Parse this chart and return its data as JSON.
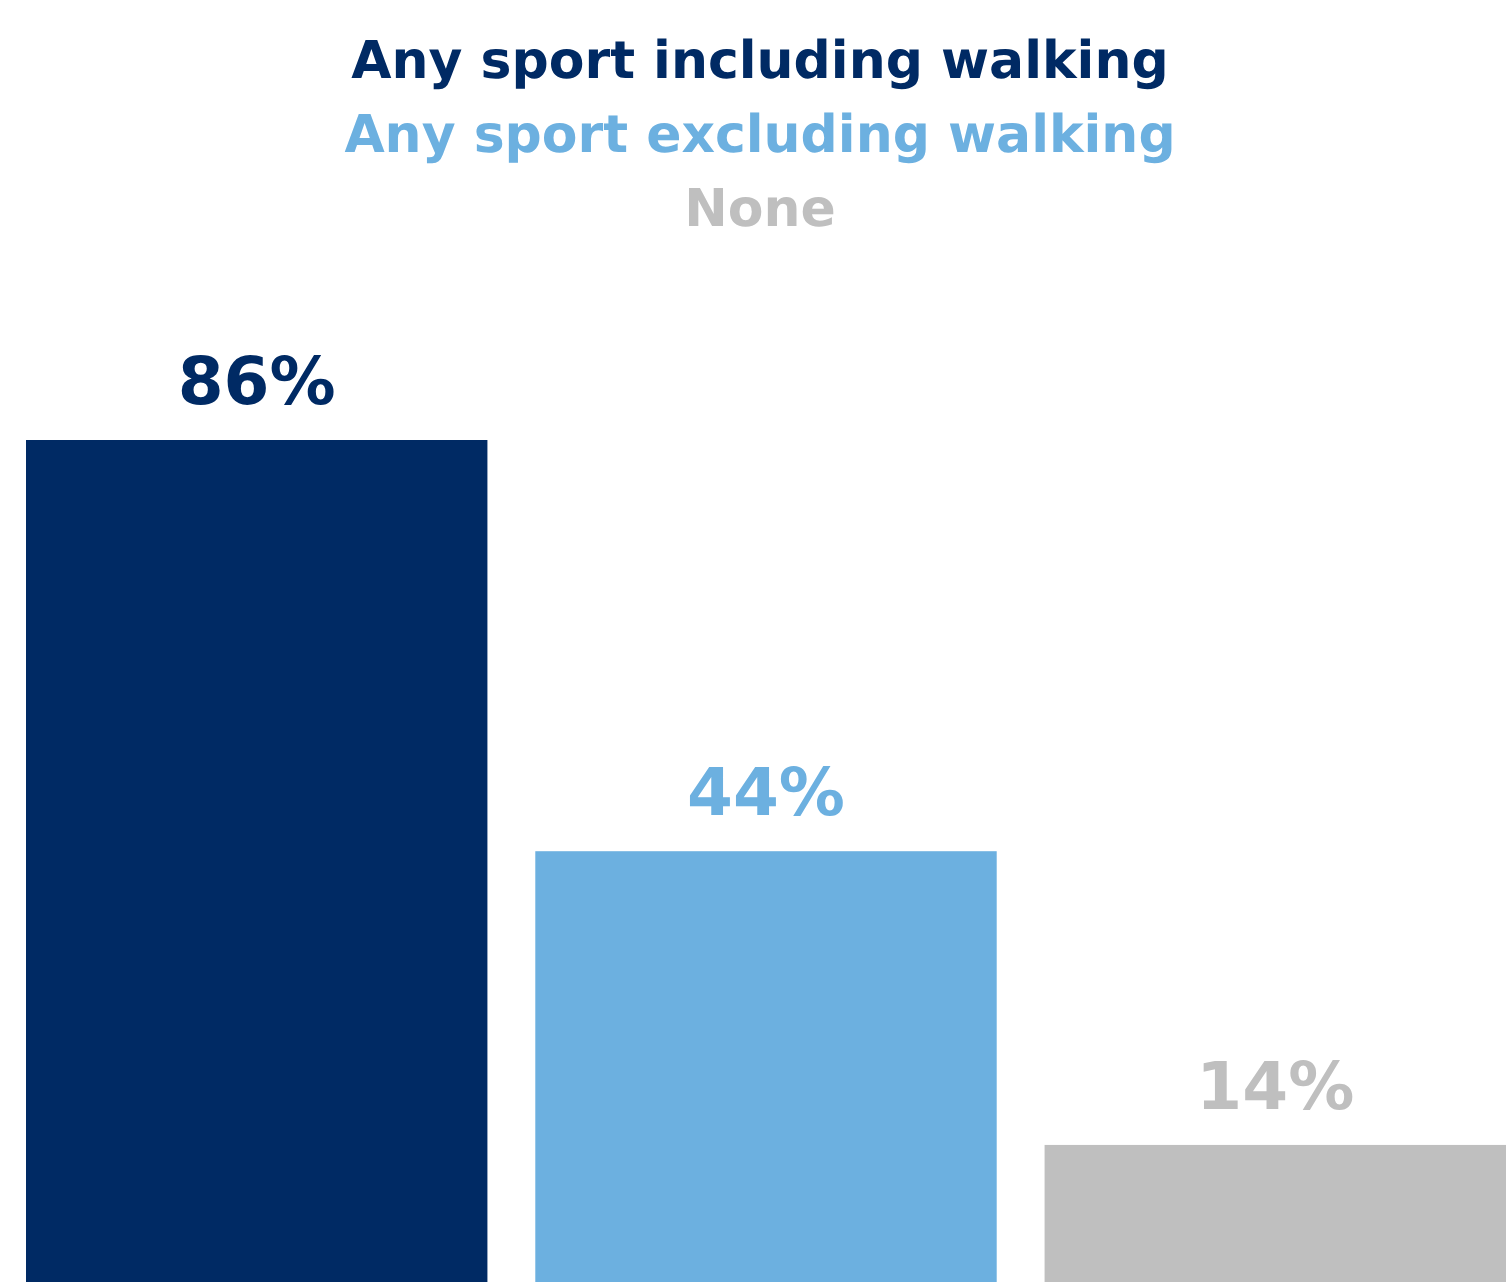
{
  "chart_data": {
    "type": "bar",
    "categories": [
      null,
      null,
      null
    ],
    "values": [
      86,
      44,
      14
    ],
    "colors": [
      "#002a64",
      "#6cb0e0",
      "#bfbfbf"
    ],
    "value_labels": [
      "86%",
      "44%",
      "14%"
    ],
    "annotations": [
      "Any sport including walking",
      "Any sport excluding walking",
      "None"
    ]
  }
}
